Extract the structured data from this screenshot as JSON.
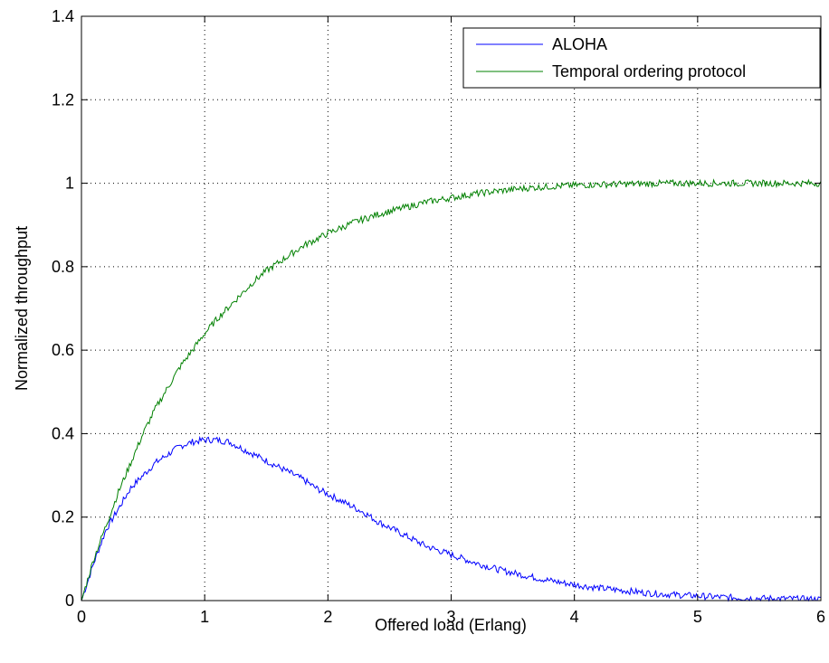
{
  "chart_data": {
    "type": "line",
    "title": "",
    "xlabel": "Offered load (Erlang)",
    "ylabel": "Normalized throughput",
    "xlim": [
      0,
      6
    ],
    "ylim": [
      0,
      1.4
    ],
    "xticks": [
      "0",
      "1",
      "2",
      "3",
      "4",
      "5",
      "6"
    ],
    "yticks": [
      "0",
      "0.2",
      "0.4",
      "0.6",
      "0.8",
      "1",
      "1.2",
      "1.4"
    ],
    "grid": true,
    "legend_position": "top-right",
    "series": [
      {
        "name": "ALOHA",
        "color": "#0000ff",
        "x": [
          0,
          0.1,
          0.2,
          0.3,
          0.4,
          0.5,
          0.6,
          0.7,
          0.8,
          0.9,
          1.0,
          1.1,
          1.2,
          1.3,
          1.4,
          1.5,
          1.6,
          1.7,
          1.8,
          1.9,
          2.0,
          2.1,
          2.2,
          2.3,
          2.4,
          2.5,
          2.6,
          2.7,
          2.8,
          2.9,
          3.0,
          3.2,
          3.4,
          3.6,
          3.8,
          4.0,
          4.2,
          4.4,
          4.6,
          4.8,
          5.0,
          5.2,
          5.4,
          5.6,
          5.8,
          6.0
        ],
        "y": [
          0,
          0.09,
          0.17,
          0.22,
          0.27,
          0.3,
          0.33,
          0.35,
          0.37,
          0.38,
          0.385,
          0.385,
          0.38,
          0.365,
          0.35,
          0.335,
          0.32,
          0.305,
          0.29,
          0.27,
          0.255,
          0.24,
          0.225,
          0.21,
          0.19,
          0.175,
          0.16,
          0.145,
          0.13,
          0.12,
          0.11,
          0.09,
          0.073,
          0.06,
          0.048,
          0.038,
          0.03,
          0.024,
          0.018,
          0.014,
          0.011,
          0.008,
          0.006,
          0.005,
          0.004,
          0.003
        ]
      },
      {
        "name": "Temporal ordering protocol",
        "color": "#008000",
        "x": [
          0,
          0.1,
          0.2,
          0.3,
          0.4,
          0.5,
          0.6,
          0.7,
          0.8,
          0.9,
          1.0,
          1.1,
          1.2,
          1.3,
          1.4,
          1.5,
          1.6,
          1.7,
          1.8,
          1.9,
          2.0,
          2.2,
          2.4,
          2.6,
          2.8,
          3.0,
          3.2,
          3.4,
          3.6,
          3.8,
          4.0,
          4.2,
          4.4,
          4.6,
          4.8,
          5.0,
          5.2,
          5.4,
          5.6,
          5.8,
          6.0
        ],
        "y": [
          0,
          0.1,
          0.18,
          0.26,
          0.33,
          0.4,
          0.46,
          0.51,
          0.56,
          0.6,
          0.64,
          0.675,
          0.705,
          0.735,
          0.765,
          0.79,
          0.81,
          0.83,
          0.85,
          0.865,
          0.88,
          0.905,
          0.925,
          0.94,
          0.955,
          0.965,
          0.975,
          0.982,
          0.988,
          0.992,
          0.995,
          0.997,
          0.998,
          0.999,
          1.0,
          1.0,
          1.0,
          1.0,
          1.0,
          1.0,
          1.0
        ]
      }
    ]
  }
}
